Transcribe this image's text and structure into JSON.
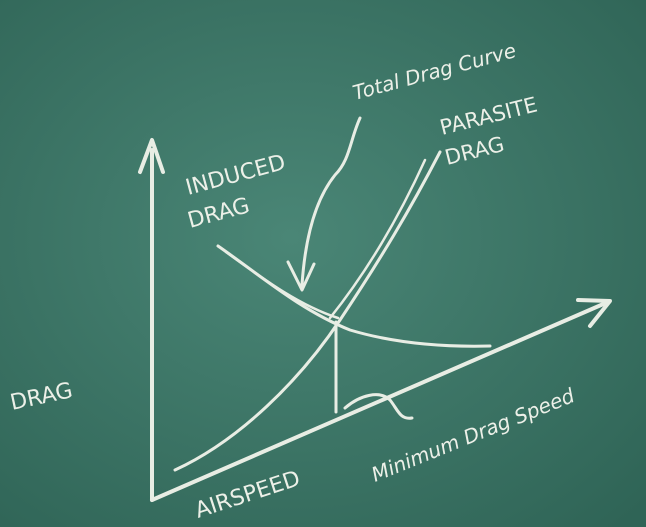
{
  "labels": {
    "total_drag": "Total Drag Curve",
    "parasite": [
      "PARASITE",
      "DRAG"
    ],
    "induced": [
      "INDUCED",
      "DRAG"
    ],
    "y_axis": "DRAG",
    "x_axis": "AIRSPEED",
    "min_drag_speed": "Minimum Drag Speed"
  }
}
